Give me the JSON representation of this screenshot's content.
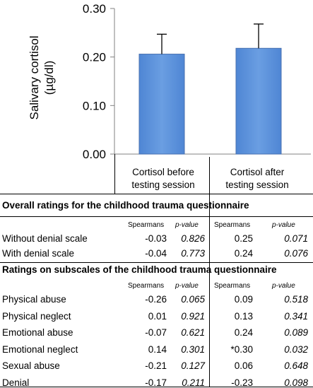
{
  "chart_data": {
    "type": "bar",
    "ylabel_line1": "Salivary cortisol",
    "ylabel_line2": "(µg/dl)",
    "ylim": [
      0,
      0.3
    ],
    "yticks": [
      "0.00",
      "0.10",
      "0.20",
      "0.30"
    ],
    "categories": [
      "Cortisol before testing session",
      "Cortisol after testing session"
    ],
    "values": [
      0.206,
      0.218
    ],
    "error_upper": [
      0.247,
      0.268
    ],
    "bar_color": "#5b8fd8",
    "bar_edge": "#4a72b0"
  },
  "table": {
    "cat1_line1": "Cortisol before",
    "cat1_line2": "testing session",
    "cat2_line1": "Cortisol after",
    "cat2_line2": "testing session",
    "section1_title": "Overall ratings for the childhood trauma questionnaire",
    "section2_title": "Ratings on subscales of the childhood trauma questionnaire",
    "hdr_spearmans": "Spearmans",
    "hdr_pvalue": "p-value",
    "overall_rows": [
      {
        "label": "Without denial scale",
        "s1": "-0.03",
        "p1": "0.826",
        "s2": "0.25",
        "p2": "0.071"
      },
      {
        "label": "With denial scale",
        "s1": "-0.04",
        "p1": "0.773",
        "s2": "0.24",
        "p2": "0.076"
      }
    ],
    "subscale_rows": [
      {
        "label": "Physical abuse",
        "s1": "-0.26",
        "p1": "0.065",
        "s2": "0.09",
        "p2": "0.518"
      },
      {
        "label": "Physical neglect",
        "s1": "0.01",
        "p1": "0.921",
        "s2": "0.13",
        "p2": "0.341"
      },
      {
        "label": "Emotional abuse",
        "s1": "-0.07",
        "p1": "0.621",
        "s2": "0.24",
        "p2": "0.089"
      },
      {
        "label": "Emotional neglect",
        "s1": "0.14",
        "p1": "0.301",
        "s2": "*0.30",
        "p2": "0.032"
      },
      {
        "label": "Sexual abuse",
        "s1": "-0.21",
        "p1": "0.127",
        "s2": "0.06",
        "p2": "0.648"
      },
      {
        "label": "Denial",
        "s1": "-0.17",
        "p1": "0.211",
        "s2": "-0.23",
        "p2": "0.098"
      }
    ]
  }
}
